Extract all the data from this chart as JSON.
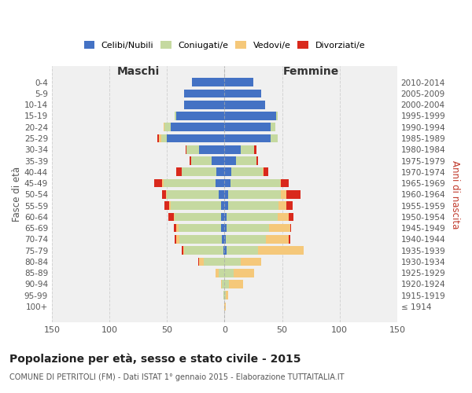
{
  "age_groups": [
    "100+",
    "95-99",
    "90-94",
    "85-89",
    "80-84",
    "75-79",
    "70-74",
    "65-69",
    "60-64",
    "55-59",
    "50-54",
    "45-49",
    "40-44",
    "35-39",
    "30-34",
    "25-29",
    "20-24",
    "15-19",
    "10-14",
    "5-9",
    "0-4"
  ],
  "birth_years": [
    "≤ 1914",
    "1915-1919",
    "1920-1924",
    "1925-1929",
    "1930-1934",
    "1935-1939",
    "1940-1944",
    "1945-1949",
    "1950-1954",
    "1955-1959",
    "1960-1964",
    "1965-1969",
    "1970-1974",
    "1975-1979",
    "1980-1984",
    "1985-1989",
    "1990-1994",
    "1995-1999",
    "2000-2004",
    "2005-2009",
    "2010-2014"
  ],
  "males": {
    "celibi": [
      0,
      0,
      0,
      0,
      0,
      1,
      2,
      3,
      3,
      3,
      5,
      8,
      7,
      11,
      22,
      50,
      47,
      42,
      35,
      35,
      28
    ],
    "coniugati": [
      0,
      1,
      2,
      5,
      18,
      34,
      37,
      37,
      40,
      44,
      45,
      45,
      30,
      18,
      11,
      5,
      5,
      1,
      0,
      0,
      0
    ],
    "vedovi": [
      0,
      0,
      1,
      3,
      4,
      1,
      3,
      2,
      1,
      1,
      1,
      1,
      0,
      0,
      0,
      2,
      1,
      0,
      0,
      0,
      0
    ],
    "divorziati": [
      0,
      0,
      0,
      0,
      1,
      1,
      1,
      2,
      5,
      4,
      3,
      7,
      5,
      1,
      1,
      1,
      0,
      0,
      0,
      0,
      0
    ]
  },
  "females": {
    "nubili": [
      0,
      0,
      0,
      0,
      0,
      2,
      1,
      2,
      2,
      3,
      3,
      5,
      6,
      10,
      14,
      40,
      40,
      45,
      35,
      32,
      25
    ],
    "coniugate": [
      0,
      1,
      4,
      8,
      14,
      27,
      35,
      37,
      44,
      44,
      46,
      43,
      27,
      18,
      12,
      6,
      4,
      1,
      0,
      0,
      0
    ],
    "vedove": [
      1,
      2,
      12,
      18,
      18,
      40,
      20,
      18,
      10,
      7,
      5,
      1,
      1,
      0,
      0,
      0,
      0,
      0,
      0,
      0,
      0
    ],
    "divorziate": [
      0,
      0,
      0,
      0,
      0,
      0,
      1,
      1,
      4,
      5,
      12,
      7,
      4,
      1,
      2,
      0,
      0,
      0,
      0,
      0,
      0
    ]
  },
  "colors": {
    "celibi_nubili": "#4472C4",
    "coniugati": "#c5d9a0",
    "vedovi": "#f5c87a",
    "divorziati": "#d9291c"
  },
  "xlim": 150,
  "title": "Popolazione per età, sesso e stato civile - 2015",
  "subtitle": "COMUNE DI PETRITOLI (FM) - Dati ISTAT 1° gennaio 2015 - Elaborazione TUTTAITALIA.IT",
  "ylabel_left": "Fasce di età",
  "ylabel_right": "Anni di nascita",
  "xlabel_left": "Maschi",
  "xlabel_right": "Femmine",
  "bg_color": "#ffffff",
  "grid_color": "#cccccc"
}
